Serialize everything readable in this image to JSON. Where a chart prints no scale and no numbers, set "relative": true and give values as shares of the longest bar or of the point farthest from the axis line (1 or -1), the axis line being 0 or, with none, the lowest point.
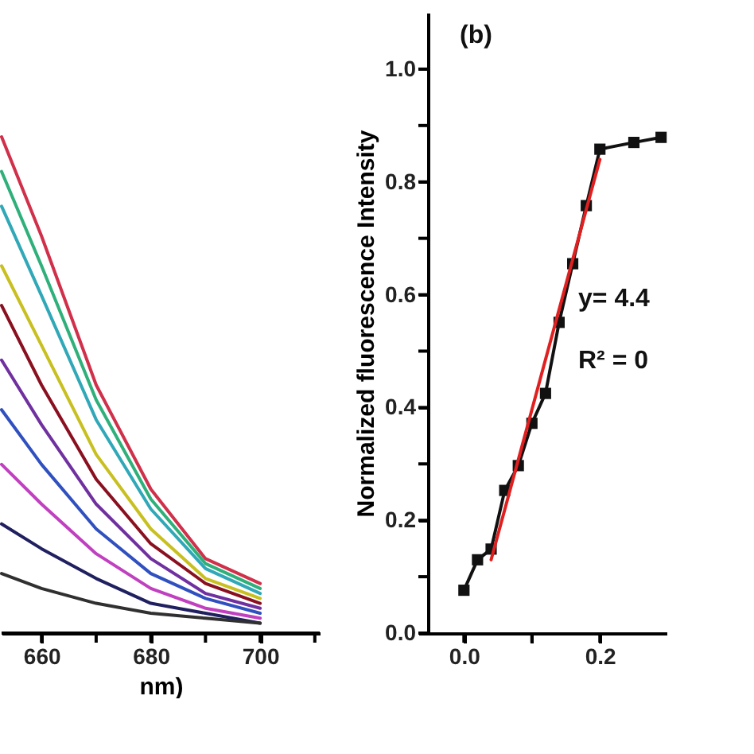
{
  "chart_data": [
    {
      "type": "line",
      "relative": true,
      "xlabel": "nm)",
      "tick_labels": "x",
      "grid": false,
      "marker": "none",
      "xlim": [
        652.7,
        710.9
      ],
      "xticks": [
        660,
        {
          "value": 670,
          "label": null
        },
        680,
        {
          "value": 690,
          "label": null
        },
        700,
        {
          "value": 710,
          "label": null
        }
      ],
      "x": [
        652.7,
        660,
        670,
        680,
        690,
        700
      ],
      "series": [
        {
          "color": "#d0304a",
          "values": [
            1.0,
            0.8,
            0.5,
            0.29,
            0.15,
            0.1
          ]
        },
        {
          "color": "#2fb07a",
          "values": [
            0.93,
            0.74,
            0.47,
            0.27,
            0.14,
            0.09
          ]
        },
        {
          "color": "#30a8b8",
          "values": [
            0.86,
            0.68,
            0.43,
            0.25,
            0.13,
            0.08
          ]
        },
        {
          "color": "#c8c020",
          "values": [
            0.74,
            0.58,
            0.36,
            0.21,
            0.11,
            0.07
          ]
        },
        {
          "color": "#8a1020",
          "values": [
            0.66,
            0.5,
            0.31,
            0.18,
            0.1,
            0.06
          ]
        },
        {
          "color": "#7030a0",
          "values": [
            0.55,
            0.42,
            0.26,
            0.15,
            0.08,
            0.05
          ]
        },
        {
          "color": "#3050c0",
          "values": [
            0.45,
            0.34,
            0.21,
            0.12,
            0.07,
            0.04
          ]
        },
        {
          "color": "#c040c0",
          "values": [
            0.34,
            0.26,
            0.16,
            0.09,
            0.05,
            0.03
          ]
        },
        {
          "color": "#202060",
          "values": [
            0.22,
            0.17,
            0.11,
            0.06,
            0.04,
            0.02
          ]
        },
        {
          "color": "#303030",
          "values": [
            0.12,
            0.09,
            0.06,
            0.04,
            0.03,
            0.02
          ]
        }
      ]
    },
    {
      "type": "line",
      "title": "(b)",
      "ylabel": "Normalized fluorescence Intensity",
      "grid": false,
      "xlim": [
        -0.053,
        0.298
      ],
      "ylim": [
        0,
        1.1
      ],
      "xticks": [
        {
          "value": 0,
          "label": "0.0"
        },
        {
          "value": 0.1,
          "label": null
        },
        {
          "value": 0.2,
          "label": "0.2"
        }
      ],
      "yticks": [
        {
          "value": 0,
          "label": "0.0"
        },
        {
          "value": 0.1,
          "label": null
        },
        {
          "value": 0.2,
          "label": "0.2"
        },
        {
          "value": 0.3,
          "label": null
        },
        {
          "value": 0.4,
          "label": "0.4"
        },
        {
          "value": 0.5,
          "label": null
        },
        {
          "value": 0.6,
          "label": "0.6"
        },
        {
          "value": 0.7,
          "label": null
        },
        {
          "value": 0.8,
          "label": "0.8"
        },
        {
          "value": 0.9,
          "label": null
        },
        {
          "value": 1.0,
          "label": "1.0"
        }
      ],
      "annotations": [
        "y= 4.4",
        "R² = 0"
      ],
      "series": [
        {
          "color": "#111111",
          "marker": "square",
          "x": [
            0,
            0.02,
            0.04,
            0.06,
            0.08,
            0.1,
            0.12,
            0.14,
            0.16,
            0.18,
            0.2,
            0.25,
            0.29
          ],
          "values": [
            0.076,
            0.13,
            0.149,
            0.253,
            0.297,
            0.372,
            0.425,
            0.551,
            0.655,
            0.758,
            0.858,
            0.87,
            0.879
          ]
        },
        {
          "color": "#e02020",
          "marker": "none",
          "x": [
            0.04,
            0.2
          ],
          "values": [
            0.13,
            0.84
          ]
        }
      ]
    }
  ]
}
